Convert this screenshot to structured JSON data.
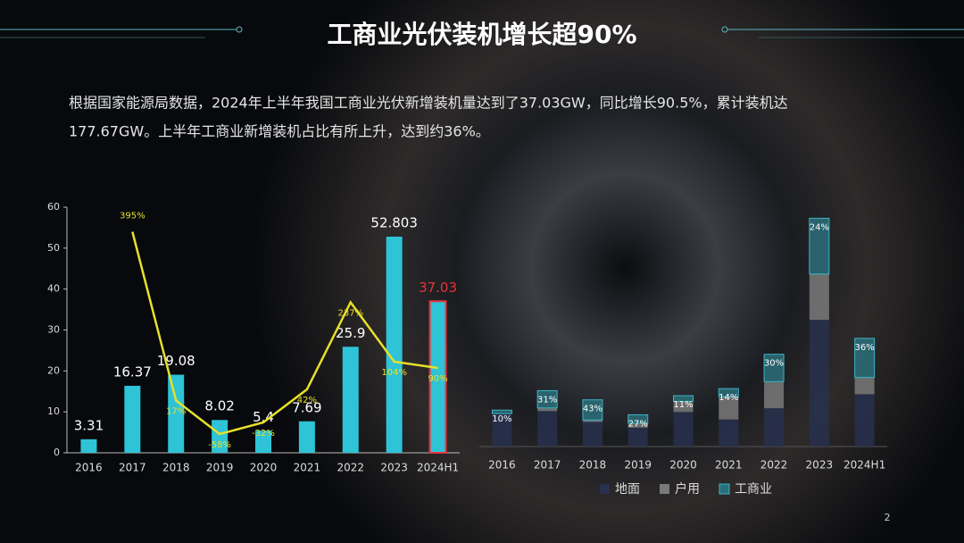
{
  "title": "工商业光伏装机增长超90%",
  "body_lines": [
    "根据国家能源局数据，2024年上半年我国工商业光伏新增装机量达到了37.03GW，同比增长90.5%，累计装机达",
    "177.67GW。上半年工商业新增装机占比有所上升，达到约36%。"
  ],
  "page_number": "2",
  "chart_data": [
    {
      "type": "bar",
      "categories": [
        "2016",
        "2017",
        "2018",
        "2019",
        "2020",
        "2021",
        "2022",
        "2023",
        "2024H1"
      ],
      "series": [
        {
          "type": "bar",
          "color": "#2ec3d6",
          "values": [
            3.31,
            16.37,
            19.08,
            8.02,
            5.4,
            7.69,
            25.9,
            52.803,
            37.03
          ],
          "edge_colors": [
            null,
            null,
            null,
            null,
            null,
            null,
            null,
            null,
            "#e8333c"
          ]
        },
        {
          "type": "line",
          "axis": "y2",
          "color": "#e6e02a",
          "values": [
            null,
            395,
            17,
            -58,
            -32,
            42,
            237,
            104,
            90
          ],
          "value_labels": [
            null,
            "395%",
            "17%",
            "-58%",
            "-32%",
            "42%",
            "237%",
            "104%",
            "90%"
          ]
        }
      ],
      "ylim": [
        0,
        60
      ],
      "yticks": [
        0,
        10,
        20,
        30,
        40,
        50,
        60
      ],
      "y2lim": [
        -100,
        450
      ]
    },
    {
      "type": "stacked_bar",
      "categories": [
        "2016",
        "2017",
        "2018",
        "2019",
        "2020",
        "2021",
        "2022",
        "2023",
        "2024H1"
      ],
      "series": [
        {
          "name": "地面",
          "color": "#28304e",
          "values": [
            31.2,
            33.6,
            23.3,
            17.9,
            32.7,
            25.6,
            36.3,
            120,
            49.6
          ]
        },
        {
          "name": "户用",
          "color": "#7a7a7a",
          "values": [
            0,
            3.0,
            1.9,
            4.2,
            10.1,
            21.6,
            25.2,
            43.5,
            15.9
          ]
        },
        {
          "name": "工商业",
          "color": "#2b6f7a",
          "values": [
            3.31,
            16.37,
            19.08,
            8.02,
            5.4,
            7.69,
            25.9,
            52.803,
            37.03
          ]
        }
      ],
      "shares": [
        {
          "value": 10,
          "label": "10%"
        },
        {
          "value": 31,
          "label": "31%"
        },
        {
          "value": 43,
          "label": "43%"
        },
        {
          "value": 27,
          "label": "27%"
        },
        {
          "value": 11,
          "label": "11%"
        },
        {
          "value": 14,
          "label": "14%"
        },
        {
          "value": 30,
          "label": "30%"
        },
        {
          "value": 24,
          "label": "24%"
        },
        {
          "value": 36,
          "label": "36%"
        }
      ],
      "ylim": [
        0,
        220
      ],
      "legend": "bottom"
    }
  ]
}
